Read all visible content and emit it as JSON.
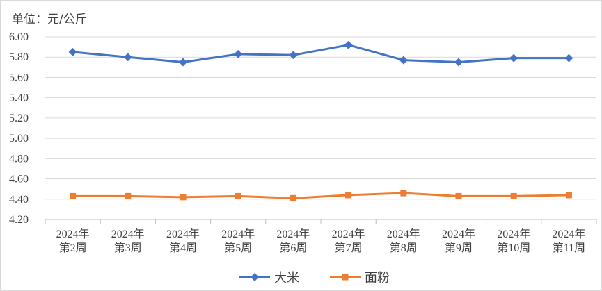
{
  "chart_data": {
    "type": "line",
    "unit_label": "单位：元/公斤",
    "categories": [
      [
        "2024年",
        "第2周"
      ],
      [
        "2024年",
        "第3周"
      ],
      [
        "2024年",
        "第4周"
      ],
      [
        "2024年",
        "第5周"
      ],
      [
        "2024年",
        "第6周"
      ],
      [
        "2024年",
        "第7周"
      ],
      [
        "2024年",
        "第8周"
      ],
      [
        "2024年",
        "第9周"
      ],
      [
        "2024年",
        "第10周"
      ],
      [
        "2024年",
        "第11周"
      ]
    ],
    "series": [
      {
        "name": "大米",
        "color": "#4472c4",
        "marker": "diamond",
        "values": [
          5.85,
          5.8,
          5.75,
          5.83,
          5.82,
          5.92,
          5.77,
          5.75,
          5.79,
          5.79
        ]
      },
      {
        "name": "面粉",
        "color": "#ed7d31",
        "marker": "square",
        "values": [
          4.43,
          4.43,
          4.42,
          4.43,
          4.41,
          4.44,
          4.46,
          4.43,
          4.43,
          4.44
        ]
      }
    ],
    "ylim": [
      4.2,
      6.0
    ],
    "yticks": [
      "4.20",
      "4.40",
      "4.60",
      "4.80",
      "5.00",
      "5.20",
      "5.40",
      "5.60",
      "5.80",
      "6.00"
    ],
    "grid": true,
    "legend_position": "bottom"
  }
}
